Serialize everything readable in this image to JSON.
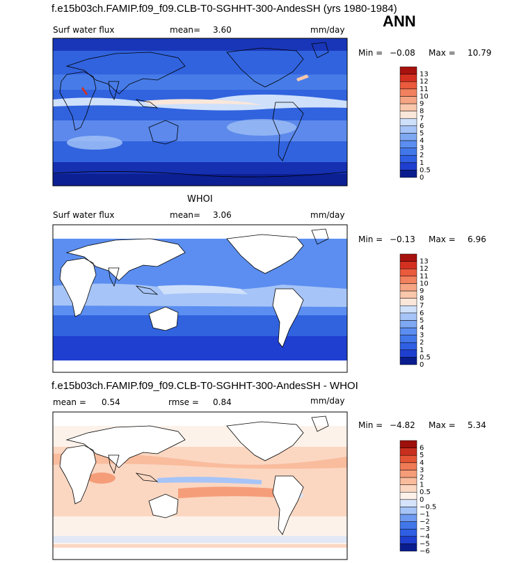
{
  "main_title": "f.e15b03ch.FAMIP.f09_f09.CLB-T0-SGHHT-300-AndesSH (yrs 1980-1984)",
  "season": "ANN",
  "panels": [
    {
      "variable": "Surf water flux",
      "stat1_label": "mean=",
      "stat1_value": "3.60",
      "stat2_label": "",
      "stat2_value": "",
      "units": "mm/day",
      "min_label": "Min =",
      "min_value": "−0.08",
      "max_label": "Max =",
      "max_value": "10.79",
      "colorbar_levels": [
        "0",
        "0.5",
        "1",
        "2",
        "3",
        "4",
        "5",
        "6",
        "7",
        "8",
        "9",
        "10",
        "11",
        "12",
        "13"
      ],
      "colorbar_colors": [
        "#0a1d8f",
        "#1f3fd0",
        "#2f5fe3",
        "#4277ea",
        "#5b8ef0",
        "#7fa8f3",
        "#a6c4f7",
        "#cfe0fb",
        "#fbe7d9",
        "#f9c7ac",
        "#f6a584",
        "#f2815e",
        "#ea5a3c",
        "#d43020",
        "#a8120e"
      ],
      "land_masked": false
    },
    {
      "subtitle": "WHOI",
      "variable": "Surf water flux",
      "stat1_label": "mean=",
      "stat1_value": "3.06",
      "stat2_label": "",
      "stat2_value": "",
      "units": "mm/day",
      "min_label": "Min =",
      "min_value": "−0.13",
      "max_label": "Max =",
      "max_value": "6.96",
      "colorbar_levels": [
        "0",
        "0.5",
        "1",
        "2",
        "3",
        "4",
        "5",
        "6",
        "7",
        "8",
        "9",
        "10",
        "11",
        "12",
        "13"
      ],
      "colorbar_colors": [
        "#0a1d8f",
        "#1f3fd0",
        "#2f5fe3",
        "#4277ea",
        "#5b8ef0",
        "#7fa8f3",
        "#a6c4f7",
        "#cfe0fb",
        "#fbe7d9",
        "#f9c7ac",
        "#f6a584",
        "#f2815e",
        "#ea5a3c",
        "#d43020",
        "#a8120e"
      ],
      "land_masked": true
    },
    {
      "subtitle": "f.e15b03ch.FAMIP.f09_f09.CLB-T0-SGHHT-300-AndesSH - WHOI",
      "variable": "",
      "stat1_label": "mean =",
      "stat1_value": "0.54",
      "stat2_label": "rmse =",
      "stat2_value": "0.84",
      "units": "mm/day",
      "min_label": "Min =",
      "min_value": "−4.82",
      "max_label": "Max =",
      "max_value": "5.34",
      "colorbar_levels": [
        "−6",
        "−5",
        "−4",
        "−3",
        "−2",
        "−1",
        "−0.5",
        "0",
        "0.5",
        "1",
        "2",
        "3",
        "4",
        "5",
        "6"
      ],
      "colorbar_colors": [
        "#0a1d8f",
        "#1f3fd0",
        "#2f5fe3",
        "#4277ea",
        "#6f9af1",
        "#a6c4f7",
        "#d6e4fb",
        "#fdf2ea",
        "#fbd7c2",
        "#f9bc9d",
        "#f59d79",
        "#ef7b56",
        "#e45536",
        "#c92f1e",
        "#9e100c"
      ],
      "land_masked": true
    }
  ]
}
